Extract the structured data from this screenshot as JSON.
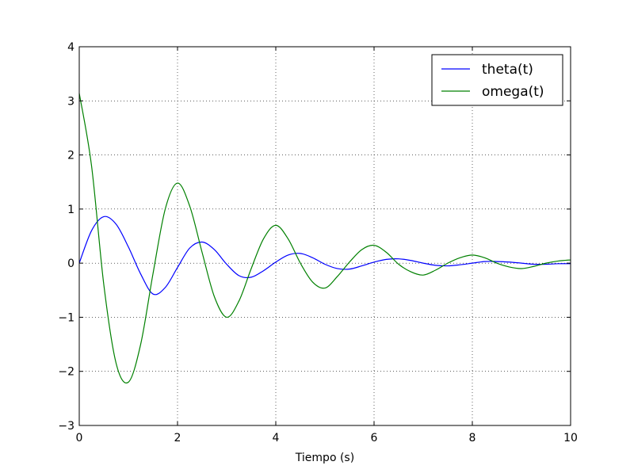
{
  "chart_data": {
    "type": "line",
    "title": "",
    "xlabel": "Tiempo (s)",
    "ylabel": "",
    "xlim": [
      0,
      10
    ],
    "ylim": [
      -3,
      4
    ],
    "grid": true,
    "legend_position": "top-right",
    "xticks": [
      "0",
      "2",
      "4",
      "6",
      "8",
      "10"
    ],
    "yticks": [
      "−3",
      "−2",
      "−1",
      "0",
      "1",
      "2",
      "3",
      "4"
    ],
    "series": [
      {
        "name": "theta(t)",
        "color": "#0000ff",
        "x": [
          0,
          0.25,
          0.5,
          0.75,
          1.0,
          1.25,
          1.5,
          1.75,
          2.0,
          2.25,
          2.5,
          2.75,
          3.0,
          3.25,
          3.5,
          3.75,
          4.0,
          4.25,
          4.5,
          4.75,
          5.0,
          5.25,
          5.5,
          5.75,
          6.0,
          6.25,
          6.5,
          6.75,
          7.0,
          7.25,
          7.5,
          7.75,
          8.0,
          8.25,
          8.5,
          8.75,
          9.0,
          9.25,
          9.5,
          9.75,
          10.0
        ],
        "values": [
          0.0,
          0.6,
          0.86,
          0.72,
          0.3,
          -0.2,
          -0.57,
          -0.45,
          -0.08,
          0.28,
          0.39,
          0.25,
          -0.02,
          -0.23,
          -0.26,
          -0.14,
          0.02,
          0.15,
          0.18,
          0.1,
          -0.02,
          -0.1,
          -0.11,
          -0.05,
          0.02,
          0.07,
          0.08,
          0.05,
          0.0,
          -0.04,
          -0.05,
          -0.03,
          0.0,
          0.03,
          0.03,
          0.02,
          0.0,
          -0.02,
          -0.02,
          -0.01,
          -0.01
        ]
      },
      {
        "name": "omega(t)",
        "color": "#008000",
        "x": [
          0,
          0.25,
          0.5,
          0.75,
          1.0,
          1.25,
          1.5,
          1.75,
          2.0,
          2.25,
          2.5,
          2.75,
          3.0,
          3.25,
          3.5,
          3.75,
          4.0,
          4.25,
          4.5,
          4.75,
          5.0,
          5.25,
          5.5,
          5.75,
          6.0,
          6.25,
          6.5,
          6.75,
          7.0,
          7.25,
          7.5,
          7.75,
          8.0,
          8.25,
          8.5,
          8.75,
          9.0,
          9.25,
          9.5,
          9.75,
          10.0
        ],
        "values": [
          3.14,
          1.8,
          -0.4,
          -1.85,
          -2.2,
          -1.5,
          -0.2,
          1.0,
          1.48,
          1.05,
          0.2,
          -0.62,
          -1.0,
          -0.7,
          -0.1,
          0.45,
          0.7,
          0.45,
          0.0,
          -0.35,
          -0.46,
          -0.25,
          0.02,
          0.25,
          0.33,
          0.2,
          -0.02,
          -0.16,
          -0.22,
          -0.13,
          0.0,
          0.1,
          0.15,
          0.1,
          0.0,
          -0.07,
          -0.1,
          -0.06,
          0.0,
          0.04,
          0.06
        ]
      }
    ]
  }
}
